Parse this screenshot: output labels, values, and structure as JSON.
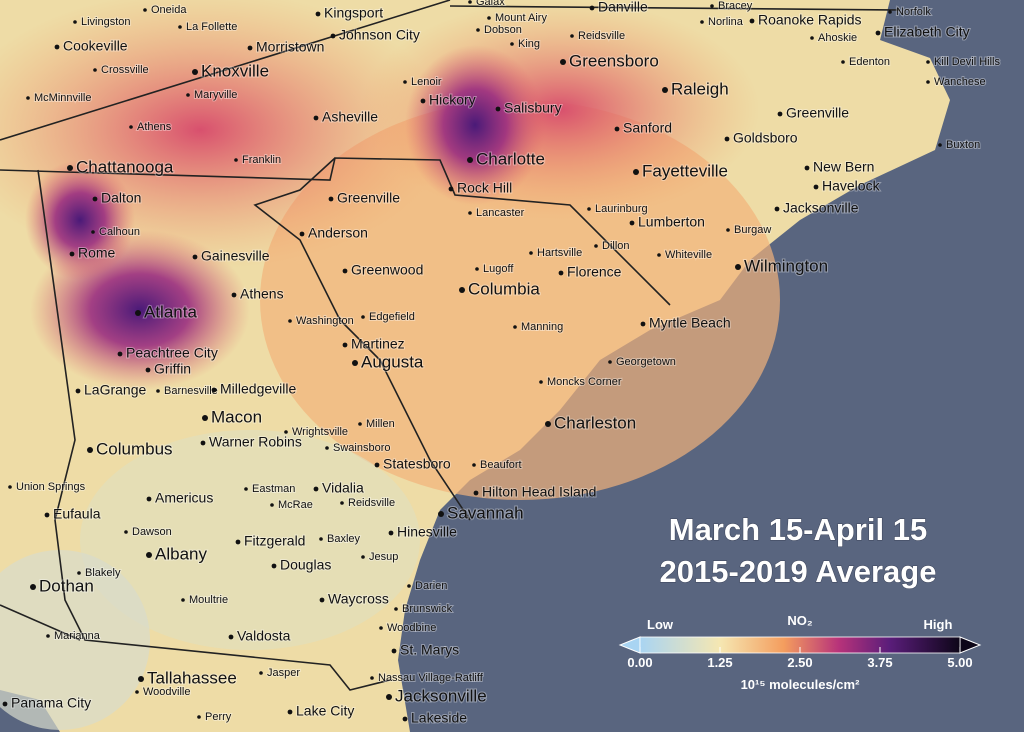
{
  "map": {
    "title": [
      "March 15-April 15",
      "2015-2019 Average"
    ],
    "cities": [
      "Livingston",
      "Oneida",
      "La Follette",
      "Kingsport",
      "Johnson City",
      "Galax",
      "Mount Airy",
      "Dobson",
      "King",
      "Danville",
      "Bracey",
      "Norlina",
      "Roanoke Rapids",
      "Norfolk",
      "Ahoskie",
      "Elizabeth City",
      "Edenton",
      "Kill Devil Hills",
      "Wanchese",
      "Cookeville",
      "Morristown",
      "Reidsville",
      "Greensboro",
      "Crossville",
      "Knoxville",
      "McMinnville",
      "Maryville",
      "Lenoir",
      "Hickory",
      "Salisbury",
      "Raleigh",
      "Greenville",
      "Athens",
      "Asheville",
      "Sanford",
      "Goldsboro",
      "Franklin",
      "Buxton",
      "Chattanooga",
      "Charlotte",
      "Fayetteville",
      "New Bern",
      "Havelock",
      "Rock Hill",
      "Greenville",
      "Dalton",
      "Lancaster",
      "Laurinburg",
      "Lumberton",
      "Jacksonville",
      "Calhoun",
      "Anderson",
      "Burgaw",
      "Rome",
      "Gainesville",
      "Hartsville",
      "Dillon",
      "Whiteville",
      "Wilmington",
      "Greenwood",
      "Lugoff",
      "Florence",
      "Columbia",
      "Athens",
      "Atlanta",
      "Washington",
      "Edgefield",
      "Myrtle Beach",
      "Manning",
      "Martinez",
      "Augusta",
      "Peachtree City",
      "Georgetown",
      "Griffin",
      "Moncks Corner",
      "LaGrange",
      "Barnesville",
      "Milledgeville",
      "Wrightsville",
      "Millen",
      "Macon",
      "Charleston",
      "Warner Robins",
      "Swainsboro",
      "Columbus",
      "Statesboro",
      "Beaufort",
      "Union Springs",
      "Eastman",
      "Vidalia",
      "Hilton Head Island",
      "Americus",
      "McRae",
      "Reidsville",
      "Eufaula",
      "Savannah",
      "Dawson",
      "Hinesville",
      "Baxley",
      "Albany",
      "Fitzgerald",
      "Jesup",
      "Douglas",
      "Blakely",
      "Darien",
      "Dothan",
      "Moultrie",
      "Waycross",
      "Brunswick",
      "Woodbine",
      "Marianna",
      "Valdosta",
      "St. Marys",
      "Jasper",
      "Tallahassee",
      "Nassau Village-Ratliff",
      "Woodville",
      "Jacksonville",
      "Panama City",
      "Perry",
      "Lake City",
      "Lakeside"
    ],
    "colorbar": {
      "name": "NO₂",
      "low": "Low",
      "high": "High",
      "units": "10¹⁵ molecules/cm²",
      "lim": [
        0,
        5
      ],
      "ticks": [
        {
          "value": 0,
          "label": "0.00"
        },
        {
          "value": 1.25,
          "label": "1.25"
        },
        {
          "value": 2.5,
          "label": "2.50"
        },
        {
          "value": 3.75,
          "label": "3.75"
        },
        {
          "value": 5,
          "label": "5.00"
        }
      ]
    }
  }
}
